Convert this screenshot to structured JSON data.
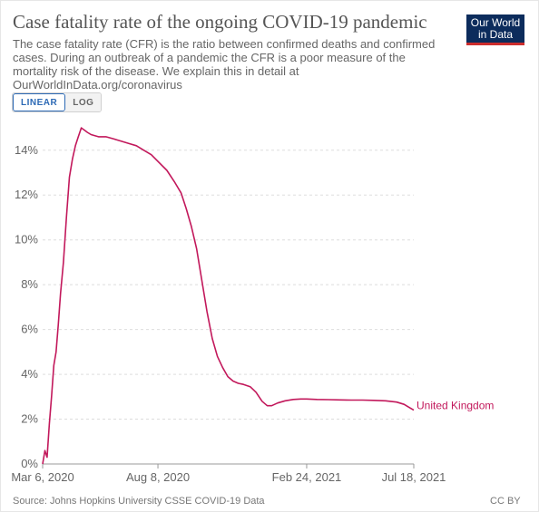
{
  "header": {
    "title": "Case fatality rate of the ongoing COVID-19 pandemic",
    "subtitle": "The case fatality rate (CFR) is the ratio between confirmed deaths and confirmed cases. During an outbreak of a pandemic the CFR is a poor measure of the mortality risk of the disease. We explain this in detail at OurWorldInData.org/coronavirus",
    "logo_line1": "Our World",
    "logo_line2": "in Data"
  },
  "controls": {
    "linear_label": "LINEAR",
    "log_label": "LOG",
    "active": "linear"
  },
  "footer": {
    "source": "Source: Johns Hopkins University CSSE COVID-19 Data",
    "license": "CC BY"
  },
  "colors": {
    "series": "#c2185b",
    "grid": "#dddddd",
    "axis": "#999999"
  },
  "chart_data": {
    "type": "line",
    "title": "Case fatality rate of the ongoing COVID-19 pandemic",
    "xlabel": "",
    "ylabel": "",
    "x_ticks": [
      "Mar 6, 2020",
      "Aug 8, 2020",
      "Feb 24, 2021",
      "Jul 18, 2021"
    ],
    "y_ticks": [
      "0%",
      "2%",
      "4%",
      "6%",
      "8%",
      "10%",
      "12%",
      "14%"
    ],
    "ylim": [
      0,
      14.8
    ],
    "xlim": [
      "2020-03-06",
      "2021-07-18"
    ],
    "grid": true,
    "legend": "end-of-line label",
    "series": [
      {
        "name": "United Kingdom",
        "points": [
          [
            "2020-03-06",
            0.0
          ],
          [
            "2020-03-09",
            0.6
          ],
          [
            "2020-03-12",
            0.3
          ],
          [
            "2020-03-15",
            1.8
          ],
          [
            "2020-03-18",
            3.0
          ],
          [
            "2020-03-21",
            4.4
          ],
          [
            "2020-03-24",
            5.0
          ],
          [
            "2020-03-27",
            6.2
          ],
          [
            "2020-03-30",
            7.6
          ],
          [
            "2020-04-03",
            9.0
          ],
          [
            "2020-04-07",
            11.0
          ],
          [
            "2020-04-11",
            12.8
          ],
          [
            "2020-04-15",
            13.6
          ],
          [
            "2020-04-19",
            14.2
          ],
          [
            "2020-04-23",
            14.6
          ],
          [
            "2020-04-27",
            15.0
          ],
          [
            "2020-05-01",
            14.9
          ],
          [
            "2020-05-05",
            14.8
          ],
          [
            "2020-05-10",
            14.7
          ],
          [
            "2020-05-20",
            14.6
          ],
          [
            "2020-05-30",
            14.6
          ],
          [
            "2020-06-10",
            14.5
          ],
          [
            "2020-06-20",
            14.4
          ],
          [
            "2020-06-30",
            14.3
          ],
          [
            "2020-07-10",
            14.2
          ],
          [
            "2020-07-20",
            14.0
          ],
          [
            "2020-07-30",
            13.8
          ],
          [
            "2020-08-08",
            13.5
          ],
          [
            "2020-08-20",
            13.1
          ],
          [
            "2020-08-30",
            12.6
          ],
          [
            "2020-09-08",
            12.1
          ],
          [
            "2020-09-15",
            11.4
          ],
          [
            "2020-09-22",
            10.6
          ],
          [
            "2020-09-29",
            9.6
          ],
          [
            "2020-10-06",
            8.2
          ],
          [
            "2020-10-13",
            6.8
          ],
          [
            "2020-10-20",
            5.6
          ],
          [
            "2020-10-27",
            4.8
          ],
          [
            "2020-11-03",
            4.3
          ],
          [
            "2020-11-10",
            3.9
          ],
          [
            "2020-11-17",
            3.7
          ],
          [
            "2020-11-24",
            3.6
          ],
          [
            "2020-12-01",
            3.55
          ],
          [
            "2020-12-10",
            3.45
          ],
          [
            "2020-12-18",
            3.2
          ],
          [
            "2020-12-26",
            2.8
          ],
          [
            "2021-01-02",
            2.6
          ],
          [
            "2021-01-08",
            2.6
          ],
          [
            "2021-01-16",
            2.72
          ],
          [
            "2021-01-26",
            2.82
          ],
          [
            "2021-02-06",
            2.88
          ],
          [
            "2021-02-16",
            2.9
          ],
          [
            "2021-02-24",
            2.9
          ],
          [
            "2021-03-10",
            2.88
          ],
          [
            "2021-03-25",
            2.87
          ],
          [
            "2021-04-10",
            2.86
          ],
          [
            "2021-04-25",
            2.85
          ],
          [
            "2021-05-10",
            2.85
          ],
          [
            "2021-05-25",
            2.84
          ],
          [
            "2021-06-10",
            2.82
          ],
          [
            "2021-06-25",
            2.76
          ],
          [
            "2021-07-05",
            2.66
          ],
          [
            "2021-07-12",
            2.52
          ],
          [
            "2021-07-18",
            2.4
          ]
        ]
      }
    ]
  }
}
